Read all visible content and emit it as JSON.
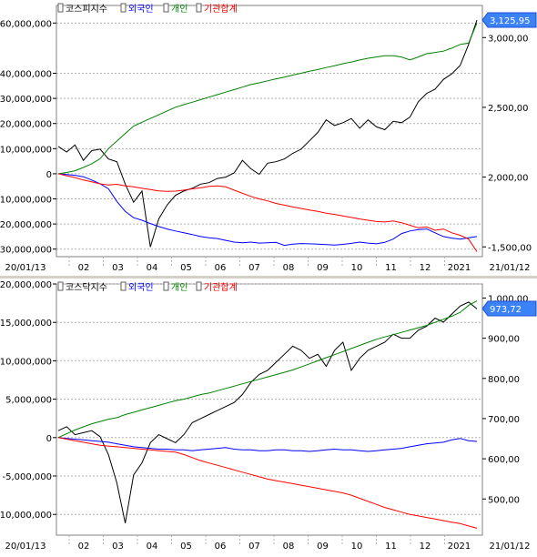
{
  "chart_data": [
    {
      "type": "line",
      "legend": [
        "코스피지수",
        "외국인",
        "개인",
        "기관합계"
      ],
      "x_ticks": [
        "20/01/13",
        "02",
        "03",
        "04",
        "05",
        "06",
        "07",
        "08",
        "09",
        "10",
        "11",
        "12",
        "2021",
        "21/01/12"
      ],
      "left_ticks": [
        {
          "v": 60000000,
          "label": "60,000,000"
        },
        {
          "v": 40000000,
          "label": "40,000,000"
        },
        {
          "v": 30000000,
          "label": "30,000,000"
        },
        {
          "v": 20000000,
          "label": "20,000,000"
        },
        {
          "v": 10000000,
          "label": "10,000,000"
        },
        {
          "v": 0,
          "label": "0"
        },
        {
          "v": -10000000,
          "label": "-10,000,000"
        },
        {
          "v": -20000000,
          "label": "-20,000,000"
        },
        {
          "v": -30000000,
          "label": "-30,000,000"
        }
      ],
      "left_range": [
        -33000000,
        67000000
      ],
      "right_ticks": [
        {
          "v": 3000,
          "label": "3,000,00"
        },
        {
          "v": 2500,
          "label": "2,500,00"
        },
        {
          "v": 2000,
          "label": "2,000,00"
        },
        {
          "v": 1500,
          "label": "-1,500,00"
        }
      ],
      "right_range": [
        1430,
        3230
      ],
      "current_label": "3,125,95",
      "current_value": 3125.95,
      "series": [
        {
          "name": "코스피지수",
          "axis": "right",
          "color": "#000000",
          "values": [
            2220,
            2180,
            2230,
            2120,
            2190,
            2200,
            2130,
            2110,
            1950,
            1820,
            1900,
            1500,
            1700,
            1800,
            1870,
            1900,
            1920,
            1950,
            1960,
            1990,
            2000,
            2030,
            2120,
            2060,
            2020,
            2100,
            2110,
            2130,
            2170,
            2200,
            2260,
            2320,
            2410,
            2370,
            2390,
            2420,
            2350,
            2410,
            2360,
            2340,
            2400,
            2390,
            2430,
            2540,
            2600,
            2630,
            2700,
            2740,
            2800,
            2950,
            3125
          ]
        },
        {
          "name": "외국인",
          "axis": "left",
          "color": "#0000ff",
          "values": [
            0,
            -300000,
            -600000,
            -1200000,
            -2500000,
            -4000000,
            -6000000,
            -11000000,
            -15000000,
            -17500000,
            -18500000,
            -19800000,
            -21000000,
            -22000000,
            -22800000,
            -23500000,
            -24200000,
            -25000000,
            -25500000,
            -25800000,
            -26500000,
            -27200000,
            -27500000,
            -27200000,
            -27600000,
            -27500000,
            -27300000,
            -28500000,
            -28000000,
            -27800000,
            -27900000,
            -28000000,
            -28200000,
            -28400000,
            -28100000,
            -27700000,
            -27200000,
            -27600000,
            -27900000,
            -27300000,
            -26000000,
            -23800000,
            -22800000,
            -22200000,
            -22000000,
            -23500000,
            -25000000,
            -25600000,
            -26000000,
            -25500000,
            -25000000
          ]
        },
        {
          "name": "개인",
          "axis": "left",
          "color": "#008000",
          "values": [
            0,
            500000,
            1200000,
            2500000,
            4000000,
            6000000,
            10000000,
            13000000,
            16000000,
            19000000,
            20500000,
            22000000,
            23500000,
            25000000,
            26500000,
            27500000,
            28500000,
            29500000,
            30500000,
            31500000,
            32500000,
            33500000,
            34500000,
            35500000,
            36200000,
            37000000,
            37800000,
            38500000,
            39300000,
            40000000,
            40800000,
            41500000,
            42300000,
            43000000,
            43800000,
            44500000,
            45300000,
            46000000,
            46500000,
            47000000,
            47000000,
            46500000,
            45300000,
            46500000,
            47800000,
            48300000,
            48800000,
            50000000,
            51500000,
            52000000,
            60000000
          ]
        },
        {
          "name": "기관합계",
          "axis": "left",
          "color": "#ff0000",
          "values": [
            0,
            -800000,
            -1500000,
            -2500000,
            -3200000,
            -4000000,
            -4500000,
            -4200000,
            -4800000,
            -5200000,
            -5800000,
            -6300000,
            -6800000,
            -7000000,
            -6900000,
            -6500000,
            -6000000,
            -5600000,
            -5000000,
            -4800000,
            -5200000,
            -6500000,
            -7800000,
            -9000000,
            -10000000,
            -10800000,
            -11800000,
            -12500000,
            -13200000,
            -13800000,
            -14400000,
            -15000000,
            -15700000,
            -16200000,
            -16800000,
            -17400000,
            -18000000,
            -18500000,
            -19000000,
            -19200000,
            -18800000,
            -19500000,
            -20500000,
            -21500000,
            -21200000,
            -22500000,
            -22000000,
            -23500000,
            -24500000,
            -26000000,
            -31000000
          ]
        }
      ]
    },
    {
      "type": "line",
      "legend": [
        "코스닥지수",
        "외국인",
        "개인",
        "기관합계"
      ],
      "x_ticks": [
        "20/01/13",
        "02",
        "03",
        "04",
        "05",
        "06",
        "07",
        "08",
        "09",
        "10",
        "11",
        "12",
        "2021",
        "21/01/12"
      ],
      "left_ticks": [
        {
          "v": 20000000,
          "label": "20,000,000"
        },
        {
          "v": 15000000,
          "label": "15,000,000"
        },
        {
          "v": 10000000,
          "label": "10,000,000"
        },
        {
          "v": 5000000,
          "label": "5,000,000"
        },
        {
          "v": 0,
          "label": "0"
        },
        {
          "v": -5000000,
          "label": "-5,000,000"
        },
        {
          "v": -10000000,
          "label": "-10,000,000"
        }
      ],
      "left_range": [
        -12700000,
        20000000
      ],
      "right_ticks": [
        {
          "v": 1000,
          "label": "1,000,00"
        },
        {
          "v": 900,
          "label": "900,00"
        },
        {
          "v": 800,
          "label": "800,00"
        },
        {
          "v": 700,
          "label": "700,00"
        },
        {
          "v": 600,
          "label": "600,00"
        },
        {
          "v": 500,
          "label": "500,00"
        }
      ],
      "right_range": [
        410,
        1035
      ],
      "current_label": "973,72",
      "current_value": 973.72,
      "series": [
        {
          "name": "코스닥지수",
          "axis": "right",
          "color": "#000000",
          "values": [
            670,
            680,
            660,
            665,
            670,
            655,
            610,
            540,
            440,
            560,
            590,
            640,
            660,
            650,
            640,
            660,
            690,
            700,
            710,
            720,
            730,
            740,
            760,
            790,
            810,
            820,
            840,
            860,
            880,
            870,
            850,
            860,
            830,
            870,
            890,
            820,
            850,
            870,
            880,
            890,
            910,
            900,
            900,
            920,
            930,
            950,
            940,
            960,
            980,
            990,
            973
          ]
        },
        {
          "name": "외국인",
          "axis": "left",
          "color": "#0000ff",
          "values": [
            0,
            -100000,
            -200000,
            -300000,
            -400000,
            -500000,
            -600000,
            -800000,
            -1000000,
            -1200000,
            -1300000,
            -1400000,
            -1500000,
            -1500000,
            -1600000,
            -1600000,
            -1700000,
            -1600000,
            -1500000,
            -1400000,
            -1300000,
            -1500000,
            -1600000,
            -1600000,
            -1700000,
            -1700000,
            -1600000,
            -1600000,
            -1700000,
            -1700000,
            -1800000,
            -1700000,
            -1600000,
            -1500000,
            -1600000,
            -1600000,
            -1700000,
            -1800000,
            -1700000,
            -1600000,
            -1500000,
            -1400000,
            -1200000,
            -1000000,
            -800000,
            -700000,
            -600000,
            -300000,
            -100000,
            -400000,
            -500000
          ]
        },
        {
          "name": "개인",
          "axis": "left",
          "color": "#008000",
          "values": [
            0,
            500000,
            1000000,
            1400000,
            1800000,
            2100000,
            2400000,
            2600000,
            3000000,
            3300000,
            3600000,
            3900000,
            4200000,
            4500000,
            4800000,
            5000000,
            5300000,
            5600000,
            5800000,
            6100000,
            6400000,
            6700000,
            7000000,
            7300000,
            7600000,
            7900000,
            8200000,
            8500000,
            8800000,
            9200000,
            9600000,
            10000000,
            10400000,
            10800000,
            11200000,
            11600000,
            12000000,
            12400000,
            12800000,
            13100000,
            13400000,
            13700000,
            14000000,
            14300000,
            14600000,
            15000000,
            15400000,
            15800000,
            16300000,
            17200000,
            17800000
          ]
        },
        {
          "name": "기관합계",
          "axis": "left",
          "color": "#ff0000",
          "values": [
            0,
            -200000,
            -400000,
            -600000,
            -800000,
            -1000000,
            -1100000,
            -1200000,
            -1300000,
            -1400000,
            -1500000,
            -1600000,
            -1700000,
            -1800000,
            -1900000,
            -2200000,
            -2600000,
            -3000000,
            -3300000,
            -3600000,
            -3900000,
            -4200000,
            -4500000,
            -4800000,
            -5100000,
            -5400000,
            -5600000,
            -5800000,
            -6000000,
            -6200000,
            -6400000,
            -6600000,
            -6800000,
            -7000000,
            -7200000,
            -7500000,
            -7900000,
            -8300000,
            -8700000,
            -9100000,
            -9400000,
            -9700000,
            -10000000,
            -10200000,
            -10400000,
            -10600000,
            -10800000,
            -11000000,
            -11200000,
            -11500000,
            -11800000
          ]
        }
      ]
    }
  ]
}
